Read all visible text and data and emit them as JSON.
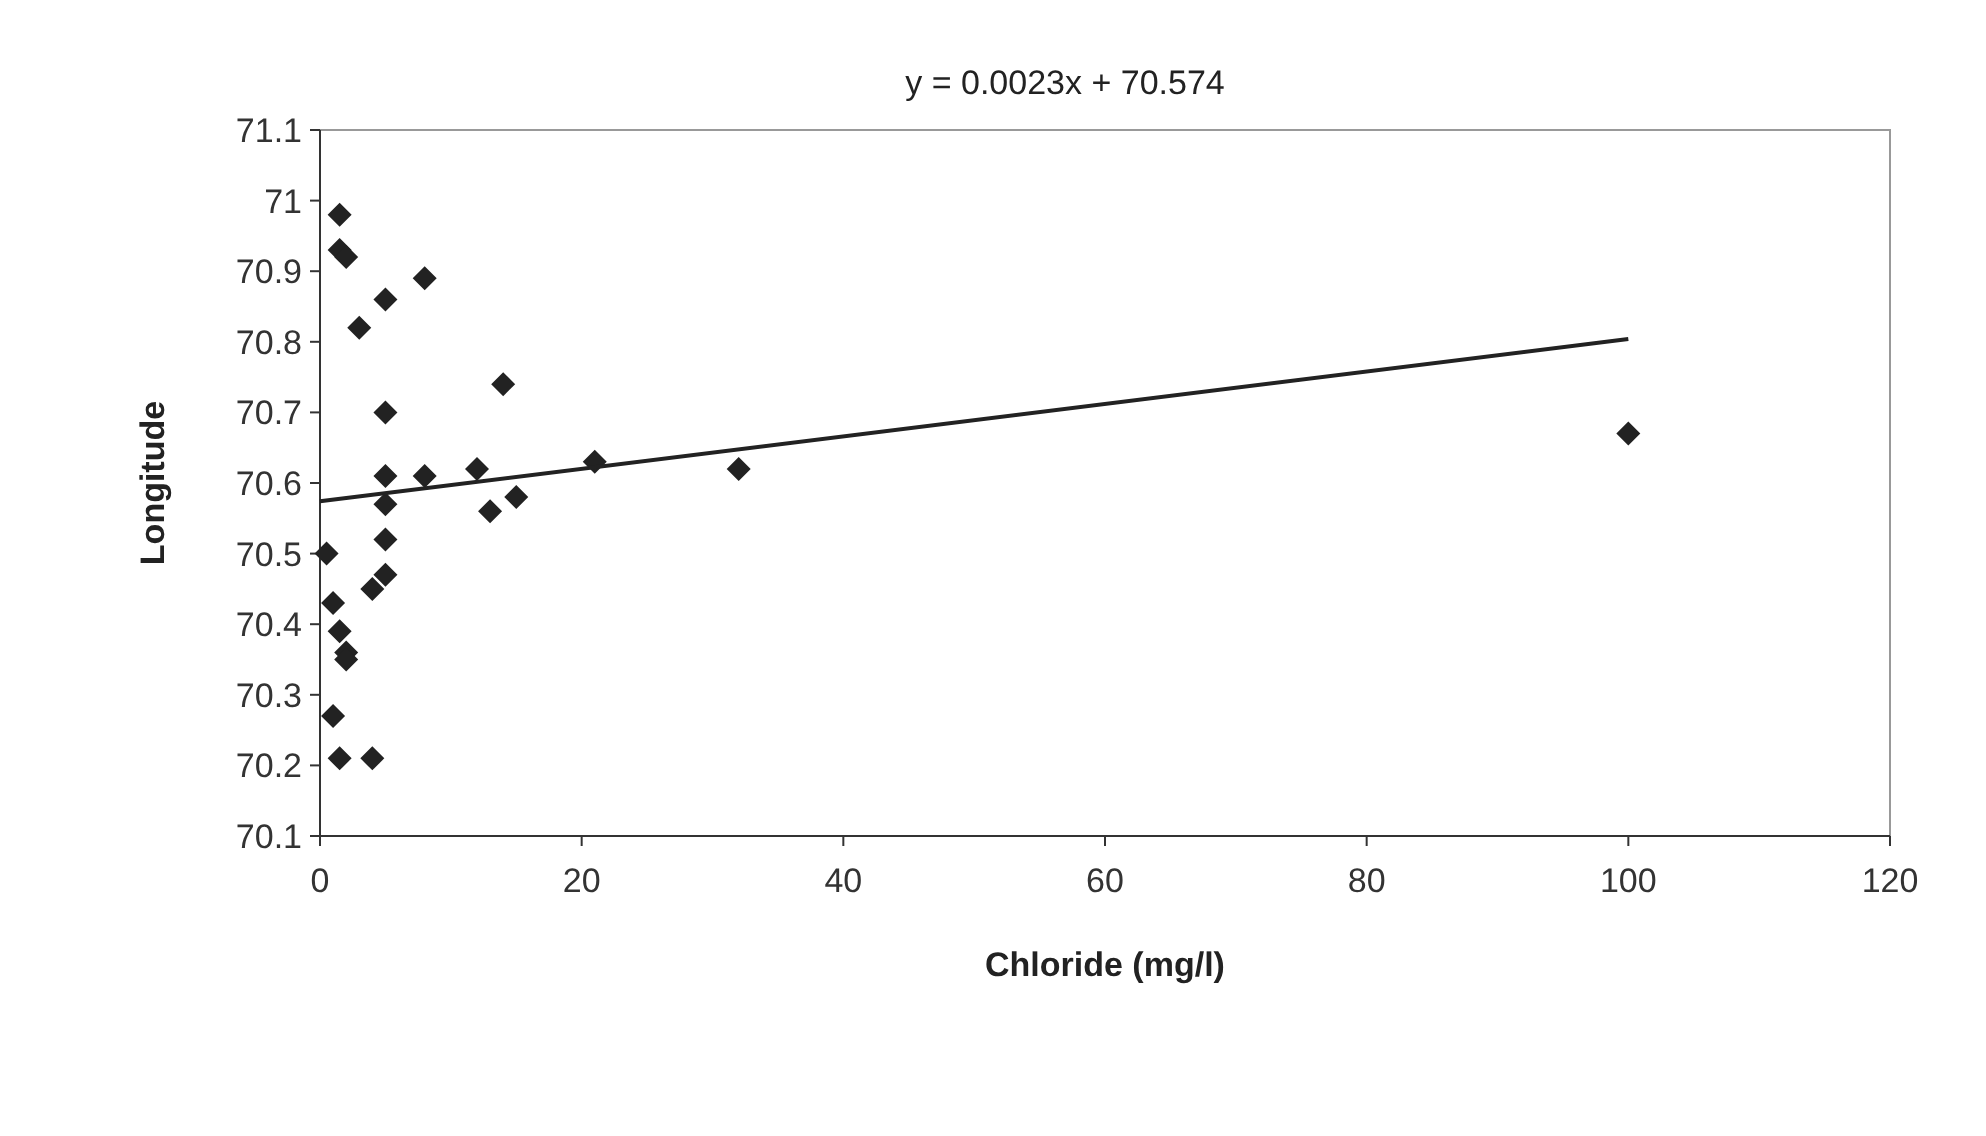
{
  "chart_data": {
    "type": "scatter",
    "xlabel": "Chloride (mg/l)",
    "ylabel": "Longitude",
    "annotations": [
      "y = 0.0023x + 70.574"
    ],
    "xlim": [
      0,
      120
    ],
    "xticks": [
      0,
      20,
      40,
      60,
      80,
      100,
      120
    ],
    "ylim": [
      70.1,
      71.1
    ],
    "yticks": [
      70.1,
      70.2,
      70.3,
      70.4,
      70.5,
      70.6,
      70.7,
      70.8,
      70.9,
      71,
      71.1
    ],
    "marker": "diamond",
    "grid": false,
    "series": [
      {
        "color": "#222222",
        "x": [
          1.5,
          1.5,
          2,
          3,
          5,
          8,
          14,
          5,
          5,
          8,
          12,
          21,
          32,
          100,
          13,
          15,
          5,
          5,
          5,
          4,
          0.5,
          1,
          1.5,
          2,
          2,
          1,
          1.5,
          4
        ],
        "values": [
          70.98,
          70.93,
          70.92,
          70.82,
          70.86,
          70.89,
          70.74,
          70.7,
          70.61,
          70.61,
          70.62,
          70.63,
          70.62,
          70.67,
          70.56,
          70.58,
          70.57,
          70.52,
          70.47,
          70.45,
          70.5,
          70.43,
          70.39,
          70.36,
          70.35,
          70.27,
          70.21,
          70.21
        ]
      },
      {
        "type": "line",
        "color": "#222222",
        "marker": "none",
        "x": [
          0,
          100
        ],
        "values": [
          70.574,
          70.804
        ]
      }
    ]
  }
}
